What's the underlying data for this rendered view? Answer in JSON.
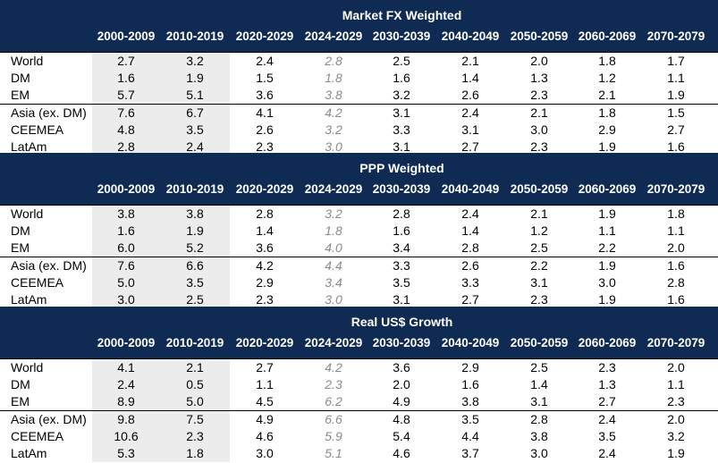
{
  "columns": [
    "2000-2009",
    "2010-2019",
    "2020-2029",
    "2024-2029",
    "2030-2039",
    "2040-2049",
    "2050-2059",
    "2060-2069",
    "2070-2079"
  ],
  "row_labels": [
    "World",
    "DM",
    "EM",
    "Asia (ex. DM)",
    "CEEMEA",
    "LatAm"
  ],
  "sections": [
    {
      "title": "Market FX Weighted",
      "rows": [
        [
          "2.7",
          "3.2",
          "2.4",
          "2.8",
          "2.5",
          "2.1",
          "2.0",
          "1.8",
          "1.7"
        ],
        [
          "1.6",
          "1.9",
          "1.5",
          "1.8",
          "1.6",
          "1.4",
          "1.3",
          "1.2",
          "1.1"
        ],
        [
          "5.7",
          "5.1",
          "3.6",
          "3.8",
          "3.2",
          "2.6",
          "2.3",
          "2.1",
          "1.9"
        ],
        [
          "7.6",
          "6.7",
          "4.1",
          "4.2",
          "3.1",
          "2.4",
          "2.1",
          "1.8",
          "1.5"
        ],
        [
          "4.8",
          "3.5",
          "2.6",
          "3.2",
          "3.3",
          "3.1",
          "3.0",
          "2.9",
          "2.7"
        ],
        [
          "2.8",
          "2.4",
          "2.3",
          "3.0",
          "3.1",
          "2.7",
          "2.3",
          "1.9",
          "1.6"
        ]
      ]
    },
    {
      "title": "PPP Weighted",
      "rows": [
        [
          "3.8",
          "3.8",
          "2.8",
          "3.2",
          "2.8",
          "2.4",
          "2.1",
          "1.9",
          "1.8"
        ],
        [
          "1.6",
          "1.9",
          "1.4",
          "1.8",
          "1.6",
          "1.4",
          "1.2",
          "1.1",
          "1.1"
        ],
        [
          "6.0",
          "5.2",
          "3.6",
          "4.0",
          "3.4",
          "2.8",
          "2.5",
          "2.2",
          "2.0"
        ],
        [
          "7.6",
          "6.6",
          "4.2",
          "4.4",
          "3.3",
          "2.6",
          "2.2",
          "1.9",
          "1.6"
        ],
        [
          "5.0",
          "3.5",
          "2.9",
          "3.4",
          "3.5",
          "3.3",
          "3.1",
          "3.0",
          "2.8"
        ],
        [
          "3.0",
          "2.5",
          "2.3",
          "3.0",
          "3.1",
          "2.7",
          "2.3",
          "1.9",
          "1.6"
        ]
      ]
    },
    {
      "title": "Real US$ Growth",
      "rows": [
        [
          "4.1",
          "2.1",
          "2.7",
          "4.2",
          "3.6",
          "2.9",
          "2.5",
          "2.3",
          "2.0"
        ],
        [
          "2.4",
          "0.5",
          "1.1",
          "2.3",
          "2.0",
          "1.6",
          "1.4",
          "1.3",
          "1.1"
        ],
        [
          "8.9",
          "5.0",
          "4.5",
          "6.2",
          "4.9",
          "3.8",
          "3.1",
          "2.7",
          "2.3"
        ],
        [
          "9.8",
          "7.5",
          "4.9",
          "6.6",
          "4.8",
          "3.5",
          "2.8",
          "2.4",
          "2.0"
        ],
        [
          "10.6",
          "2.3",
          "4.6",
          "5.9",
          "5.4",
          "4.4",
          "3.8",
          "3.5",
          "3.2"
        ],
        [
          "5.3",
          "1.8",
          "3.0",
          "5.1",
          "4.6",
          "3.7",
          "3.0",
          "2.4",
          "1.9"
        ]
      ]
    }
  ],
  "colors": {
    "header_bg": "#0f2b53",
    "header_text": "#ffffff",
    "shade": "#ececec",
    "italic_text": "#8a8a8a"
  }
}
